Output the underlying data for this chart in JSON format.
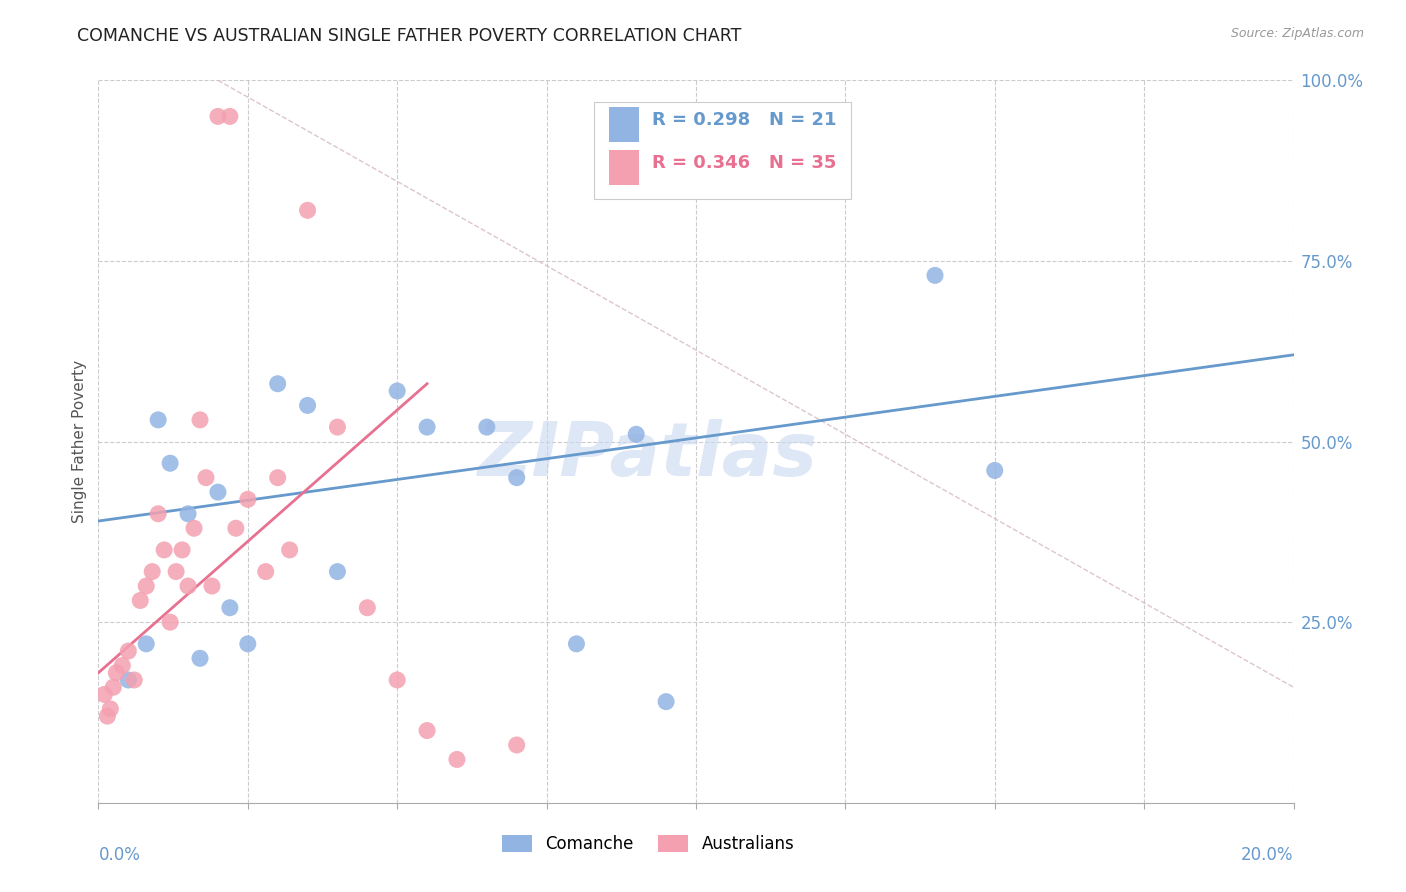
{
  "title": "COMANCHE VS AUSTRALIAN SINGLE FATHER POVERTY CORRELATION CHART",
  "source": "Source: ZipAtlas.com",
  "ylabel": "Single Father Poverty",
  "xlim": [
    0.0,
    20.0
  ],
  "ylim": [
    0.0,
    100.0
  ],
  "comanche_color": "#92b4e3",
  "australians_color": "#f4a0b0",
  "blue_line_color": "#6699cc",
  "pink_line_color": "#e87090",
  "watermark_color": "#c8d8f0",
  "watermark_text": "ZIPatlas",
  "comanche_x": [
    0.5,
    0.8,
    1.0,
    1.2,
    1.5,
    2.2,
    2.5,
    3.0,
    3.5,
    4.0,
    5.0,
    5.5,
    6.5,
    7.0,
    8.0,
    9.0,
    9.5,
    14.0,
    15.0,
    1.7,
    2.0
  ],
  "comanche_y": [
    17,
    22,
    53,
    47,
    40,
    27,
    22,
    58,
    55,
    32,
    57,
    52,
    52,
    45,
    22,
    51,
    14,
    73,
    46,
    20,
    43
  ],
  "australians_x": [
    0.1,
    0.15,
    0.2,
    0.25,
    0.3,
    0.4,
    0.5,
    0.6,
    0.7,
    0.8,
    0.9,
    1.0,
    1.1,
    1.2,
    1.3,
    1.4,
    1.5,
    1.6,
    1.7,
    1.8,
    2.0,
    2.2,
    2.5,
    2.8,
    3.0,
    3.2,
    3.5,
    4.0,
    4.5,
    5.0,
    5.5,
    6.0,
    7.0,
    2.3,
    1.9
  ],
  "australians_y": [
    15,
    12,
    13,
    16,
    18,
    19,
    21,
    17,
    28,
    30,
    32,
    40,
    35,
    25,
    32,
    35,
    30,
    38,
    53,
    45,
    95,
    95,
    42,
    32,
    45,
    35,
    82,
    52,
    27,
    17,
    10,
    6,
    8,
    38,
    30
  ],
  "blue_line_x": [
    0.0,
    20.0
  ],
  "blue_line_y": [
    39.0,
    62.0
  ],
  "pink_line_x": [
    0.0,
    5.5
  ],
  "pink_line_y": [
    18.0,
    58.0
  ],
  "ref_line_x": [
    2.0,
    20.0
  ],
  "ref_line_y": [
    100.0,
    16.0
  ],
  "xtick_positions": [
    0,
    2.5,
    5.0,
    7.5,
    10.0,
    12.5,
    15.0,
    17.5,
    20.0
  ],
  "ytick_positions": [
    25,
    50,
    75,
    100
  ],
  "ytick_labels": [
    "25.0%",
    "50.0%",
    "75.0%",
    "100.0%"
  ]
}
